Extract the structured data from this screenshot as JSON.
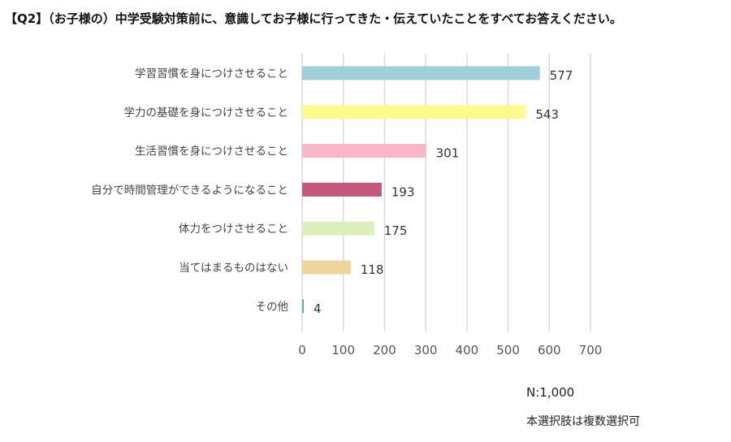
{
  "title": "【Q2】（お子様の）中学受験対策前に、意識してお子様に行ってきた・伝えていたことをすべてお答えください。",
  "n_label": "N:1,000",
  "note": "本選択肢は複数選択可",
  "chart_data": {
    "type": "bar",
    "orientation": "horizontal",
    "categories": [
      "学習習慣を身につけさせること",
      "学力の基礎を身につけさせること",
      "生活習慣を身につけさせること",
      "自分で時間管理ができるようになること",
      "体力をつけさせること",
      "当てはまるものはない",
      "その他"
    ],
    "values": [
      577,
      543,
      301,
      193,
      175,
      118,
      4
    ],
    "colors": [
      "#9fd0d8",
      "#fbfa8e",
      "#f9b6c8",
      "#c4587b",
      "#dbf0bd",
      "#efd599",
      "#6aaaa0"
    ],
    "xlim": [
      0,
      700
    ],
    "xticks": [
      "0",
      "100",
      "200",
      "300",
      "400",
      "500",
      "600",
      "700"
    ],
    "grid": true,
    "gridline_color": "#d9d9d9"
  }
}
